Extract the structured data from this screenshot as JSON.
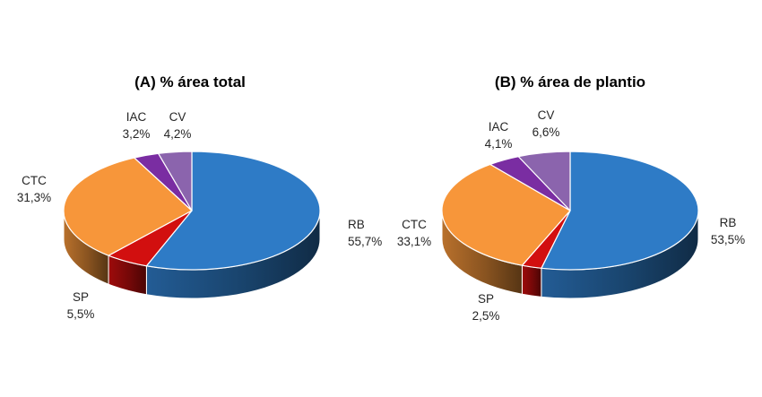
{
  "chart_data": [
    {
      "type": "pie",
      "title": "(A) % área total",
      "categories": [
        "RB",
        "SP",
        "CTC",
        "IAC",
        "CV"
      ],
      "values": [
        55.7,
        5.5,
        31.3,
        3.2,
        4.2
      ],
      "value_labels": [
        "55,7%",
        "5,5%",
        "31,3%",
        "3,2%",
        "4,2%"
      ],
      "colors": [
        "#2E7BC6",
        "#D20F0F",
        "#F7963A",
        "#7A2DA2",
        "#8B64AD"
      ],
      "style": "3d",
      "legend": "none"
    },
    {
      "type": "pie",
      "title": "(B) % área de plantio",
      "categories": [
        "RB",
        "SP",
        "CTC",
        "IAC",
        "CV"
      ],
      "values": [
        53.5,
        2.5,
        33.1,
        4.1,
        6.6
      ],
      "value_labels": [
        "53,5%",
        "2,5%",
        "33,1%",
        "4,1%",
        "6,6%"
      ],
      "colors": [
        "#2E7BC6",
        "#D20F0F",
        "#F7963A",
        "#7A2DA2",
        "#8B64AD"
      ],
      "style": "3d",
      "legend": "none"
    }
  ]
}
